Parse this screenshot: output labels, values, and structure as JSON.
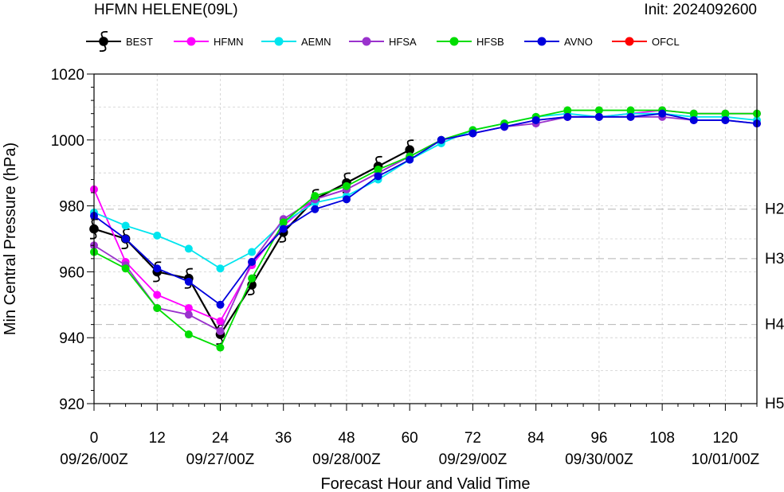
{
  "header": {
    "title": "HFMN HELENE(09L)",
    "init": "Init: 2024092600"
  },
  "chart_data": {
    "type": "line",
    "xlabel": "Forecast Hour and Valid Time",
    "ylabel": "Min Central Pressure (hPa)",
    "xlim": [
      0,
      126
    ],
    "ylim": [
      920,
      1020
    ],
    "xticks": [
      0,
      12,
      24,
      36,
      48,
      60,
      72,
      84,
      96,
      108,
      120
    ],
    "yticks": [
      920,
      940,
      960,
      980,
      1000,
      1020
    ],
    "date_labels": [
      {
        "x": 0,
        "label": "09/26/00Z"
      },
      {
        "x": 24,
        "label": "09/27/00Z"
      },
      {
        "x": 48,
        "label": "09/28/00Z"
      },
      {
        "x": 72,
        "label": "09/29/00Z"
      },
      {
        "x": 96,
        "label": "09/30/00Z"
      },
      {
        "x": 120,
        "label": "10/01/00Z"
      }
    ],
    "intensity_lines": [
      {
        "label": "H2",
        "y": 979
      },
      {
        "label": "H3",
        "y": 964
      },
      {
        "label": "H4",
        "y": 944
      },
      {
        "label": "H5",
        "y": 920
      }
    ],
    "grid": true,
    "legend_position": "top",
    "series": [
      {
        "name": "BEST",
        "color": "#000000",
        "marker": "hurricane",
        "x": [
          0,
          6,
          12,
          18,
          24,
          30,
          36,
          42,
          48,
          54,
          60
        ],
        "y": [
          973,
          970,
          960,
          958,
          941,
          956,
          972,
          982,
          987,
          992,
          997
        ]
      },
      {
        "name": "HFMN",
        "color": "#ff00ff",
        "marker": "circle",
        "x": [
          0,
          6,
          12,
          18,
          24,
          30,
          36,
          42,
          48,
          54,
          60,
          66,
          72,
          78,
          84,
          90,
          96,
          102,
          108,
          114,
          120,
          126
        ],
        "y": [
          985,
          963,
          953,
          949,
          945,
          962,
          974,
          982,
          985,
          990,
          995,
          1000,
          1002,
          1004,
          1006,
          1007,
          1007,
          1008,
          1009,
          1008,
          1008,
          1008
        ]
      },
      {
        "name": "AEMN",
        "color": "#00e5ee",
        "marker": "circle",
        "x": [
          0,
          6,
          12,
          18,
          24,
          30,
          36,
          42,
          48,
          54,
          60,
          66,
          72,
          78,
          84,
          90,
          96,
          102,
          108,
          114,
          120,
          126
        ],
        "y": [
          978,
          974,
          971,
          967,
          961,
          966,
          975,
          981,
          983,
          988,
          994,
          999,
          1003,
          1005,
          1007,
          1008,
          1007,
          1008,
          1008,
          1007,
          1007,
          1006
        ]
      },
      {
        "name": "HFSA",
        "color": "#9a32cd",
        "marker": "circle",
        "x": [
          0,
          6,
          12,
          18,
          24,
          30,
          36,
          42,
          48,
          54,
          60,
          66,
          72,
          78,
          84,
          90,
          96,
          102,
          108,
          114,
          120,
          126
        ],
        "y": [
          968,
          962,
          949,
          947,
          942,
          963,
          976,
          982,
          985,
          990,
          995,
          1000,
          1002,
          1004,
          1005,
          1007,
          1007,
          1007,
          1007,
          1006,
          1006,
          1005
        ]
      },
      {
        "name": "HFSB",
        "color": "#00dd00",
        "marker": "circle",
        "x": [
          0,
          6,
          12,
          18,
          24,
          30,
          36,
          42,
          48,
          54,
          60,
          66,
          72,
          78,
          84,
          90,
          96,
          102,
          108,
          114,
          120,
          126
        ],
        "y": [
          966,
          961,
          949,
          941,
          937,
          958,
          975,
          983,
          986,
          991,
          995,
          1000,
          1003,
          1005,
          1007,
          1009,
          1009,
          1009,
          1009,
          1008,
          1008,
          1008
        ]
      },
      {
        "name": "AVNO",
        "color": "#0000dd",
        "marker": "circle",
        "x": [
          0,
          6,
          12,
          18,
          24,
          30,
          36,
          42,
          48,
          54,
          60,
          66,
          72,
          78,
          84,
          90,
          96,
          102,
          108,
          114,
          120,
          126
        ],
        "y": [
          977,
          970,
          961,
          957,
          950,
          963,
          973,
          979,
          982,
          989,
          994,
          1000,
          1002,
          1004,
          1006,
          1007,
          1007,
          1007,
          1008,
          1006,
          1006,
          1005
        ]
      },
      {
        "name": "OFCL",
        "color": "#ff0000",
        "marker": "circle",
        "x": [],
        "y": []
      }
    ]
  }
}
